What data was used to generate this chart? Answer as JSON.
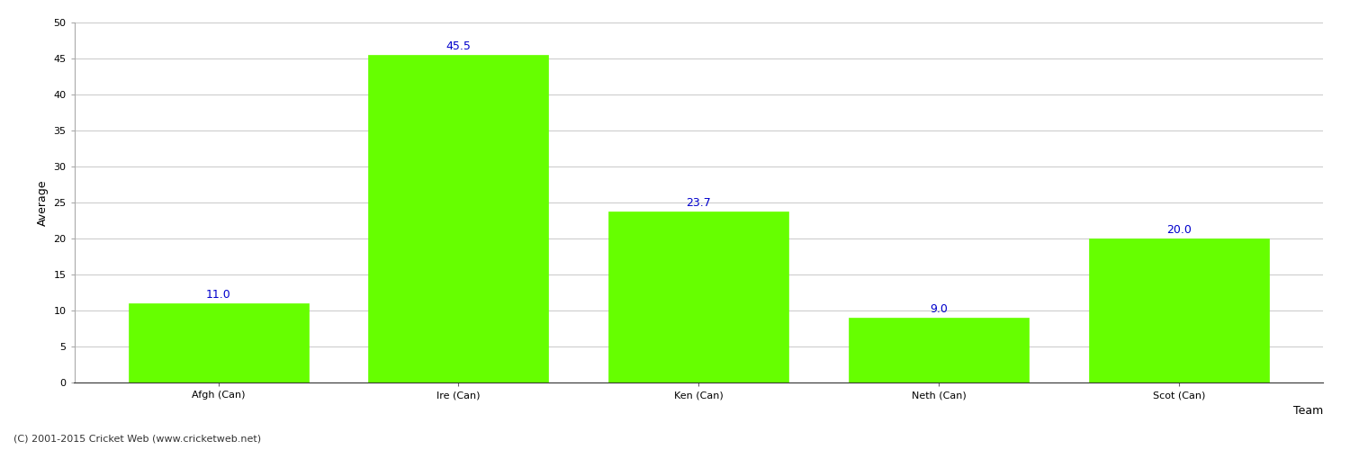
{
  "categories": [
    "Afgh (Can)",
    "Ire (Can)",
    "Ken (Can)",
    "Neth (Can)",
    "Scot (Can)"
  ],
  "values": [
    11.0,
    45.5,
    23.7,
    9.0,
    20.0
  ],
  "bar_color": "#66ff00",
  "bar_edge_color": "#66ff00",
  "value_label_color": "#0000cc",
  "value_label_fontsize": 9,
  "xlabel": "Team",
  "ylabel": "Average",
  "xlabel_fontsize": 9,
  "ylabel_fontsize": 9,
  "ylim": [
    0,
    50
  ],
  "yticks": [
    0,
    5,
    10,
    15,
    20,
    25,
    30,
    35,
    40,
    45,
    50
  ],
  "grid_color": "#cccccc",
  "background_color": "#ffffff",
  "tick_label_fontsize": 8,
  "footer_text": "(C) 2001-2015 Cricket Web (www.cricketweb.net)",
  "footer_fontsize": 8,
  "footer_color": "#333333",
  "bar_width": 0.75
}
